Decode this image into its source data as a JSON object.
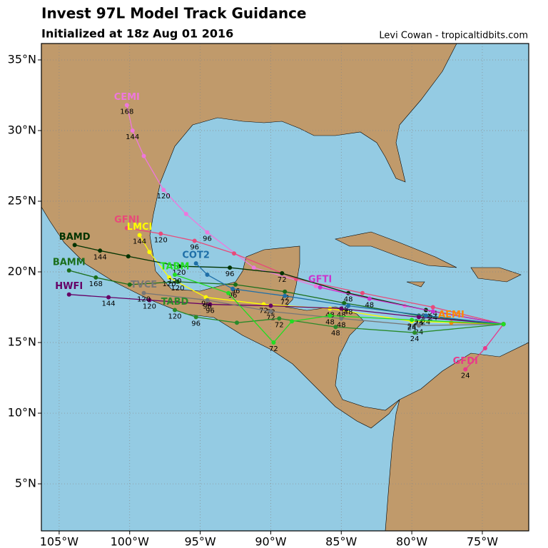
{
  "header": {
    "title": "Invest 97L Model Track Guidance",
    "subtitle": "Initialized at 18z Aug 01 2016",
    "credit": "Levi Cowan - tropicaltidbits.com"
  },
  "map": {
    "xlim": [
      -106.26,
      -71.71
    ],
    "ylim": [
      1.67,
      36.16
    ],
    "xticks": [
      {
        "value": -105,
        "label": "105°W"
      },
      {
        "value": -100,
        "label": "100°W"
      },
      {
        "value": -95,
        "label": "95°W"
      },
      {
        "value": -90,
        "label": "90°W"
      },
      {
        "value": -85,
        "label": "85°W"
      },
      {
        "value": -80,
        "label": "80°W"
      },
      {
        "value": -75,
        "label": "75°W"
      }
    ],
    "yticks": [
      {
        "value": 5,
        "label": "5°N"
      },
      {
        "value": 10,
        "label": "10°N"
      },
      {
        "value": 15,
        "label": "15°N"
      },
      {
        "value": 20,
        "label": "20°N"
      },
      {
        "value": 25,
        "label": "25°N"
      },
      {
        "value": 30,
        "label": "30°N"
      },
      {
        "value": 35,
        "label": "35°N"
      }
    ],
    "grid": true,
    "tracks": [
      {
        "name": "CEMI",
        "color": "#ee77dd",
        "lon": [
          -73.5,
          -80.5,
          -86.8,
          -91.2,
          -94.5,
          -96,
          -97.6,
          -99,
          -99.8,
          -100.2
        ],
        "lat": [
          16.3,
          17.6,
          19,
          20.3,
          22.8,
          24.1,
          25.8,
          28.2,
          30,
          31.8
        ],
        "hours": [
          null,
          null,
          null,
          null,
          "96",
          null,
          "120",
          null,
          "144",
          "168"
        ]
      },
      {
        "name": "GFNI",
        "color": "#e84a7a",
        "lon": [
          -73.5,
          -78.5,
          -83.5,
          -88.2,
          -92.6,
          -95.4,
          -97.8,
          -100.2
        ],
        "lat": [
          16.3,
          17.5,
          18.5,
          19.5,
          21.3,
          22.2,
          22.7,
          23.1
        ],
        "hours": [
          null,
          "24",
          null,
          null,
          null,
          "96",
          "120",
          null
        ]
      },
      {
        "name": "LMCI",
        "color": "#ffff00",
        "lon": [
          -73.5,
          -80,
          -85.8,
          -90.5,
          -94.6,
          -97.2,
          -98.6,
          -99.3
        ],
        "lat": [
          16.3,
          16.5,
          17.4,
          17.7,
          18.2,
          19.6,
          21.4,
          22.6
        ],
        "hours": [
          null,
          "24",
          "48",
          "72",
          "96",
          "120",
          null,
          "144"
        ]
      },
      {
        "name": "BAMD",
        "color": "#003300",
        "lon": [
          -73.5,
          -79,
          -84.5,
          -89.2,
          -92.9,
          -96.5,
          -100.1,
          -102.1,
          -103.9
        ],
        "lat": [
          16.3,
          17.3,
          18.5,
          19.9,
          20.3,
          20.4,
          21.1,
          21.5,
          21.9
        ],
        "hours": [
          null,
          "24",
          "48",
          "72",
          "96",
          "120",
          null,
          "144",
          null
        ]
      },
      {
        "name": "BAMM",
        "color": "#1a6e1a",
        "lon": [
          -73.5,
          -79.5,
          -84.8,
          -89,
          -92.5,
          -96.6,
          -100,
          -102.4,
          -104.3
        ],
        "lat": [
          16.3,
          16.9,
          17.8,
          18.6,
          19.1,
          19.3,
          19.1,
          19.6,
          20.1
        ],
        "hours": [
          null,
          "24",
          "48",
          "72",
          "96",
          "120",
          null,
          "168",
          null
        ]
      },
      {
        "name": "HWFI",
        "color": "#660066",
        "lon": [
          -73.5,
          -79.5,
          -85,
          -90,
          -94.3,
          -98.6,
          -101.5,
          -104.3
        ],
        "lat": [
          16.3,
          16.8,
          17.4,
          17.6,
          17.7,
          18,
          18.2,
          18.4
        ],
        "hours": [
          null,
          "24",
          "48",
          "72",
          "96",
          "120",
          "144",
          null
        ]
      },
      {
        "name": "GFDI",
        "color": "#e83a8a",
        "lon": [
          -73.5,
          -74.8,
          -76.2
        ],
        "lat": [
          16.3,
          14.6,
          13.1
        ],
        "hours": [
          null,
          null,
          "24"
        ]
      },
      {
        "name": "GFTI",
        "color": "#cc33cc",
        "lon": [
          -73.5,
          -78.5,
          -83,
          -86.5
        ],
        "lat": [
          16.3,
          17.2,
          18.1,
          18.9
        ],
        "hours": [
          null,
          "24",
          "48",
          null
        ]
      },
      {
        "name": "COT2",
        "color": "#1f6fa8",
        "lon": [
          -73.5,
          -79,
          -84.5,
          -89,
          -92.7,
          -94.5,
          -95.3
        ],
        "lat": [
          16.3,
          16.9,
          17.6,
          18.3,
          18.8,
          19.8,
          20.6
        ],
        "hours": [
          null,
          "24",
          "48",
          "72",
          "96",
          null,
          null
        ]
      },
      {
        "name": "TVCE",
        "color": "#777777",
        "lon": [
          -73.5,
          -79.5,
          -85,
          -90,
          -94.5,
          -99
        ],
        "lat": [
          16.3,
          16.2,
          16.7,
          17.2,
          18,
          18.5
        ],
        "hours": [
          null,
          "24",
          "48",
          "72",
          "96",
          "120"
        ]
      },
      {
        "name": "AEMI",
        "color": "#ff8800",
        "lon": [
          -73.5,
          -77.2
        ],
        "lat": [
          16.3,
          16.4
        ],
        "hours": [
          null,
          null
        ]
      },
      {
        "name": "TABD",
        "color": "#2a8a2a",
        "lon": [
          -73.5,
          -79.8,
          -85.4,
          -89.4,
          -92.4,
          -95.3,
          -96.8
        ],
        "lat": [
          16.3,
          15.7,
          16.1,
          16.7,
          16.4,
          16.8,
          17.3
        ],
        "hours": [
          null,
          "24",
          "48",
          "72",
          null,
          "96",
          "120"
        ]
      },
      {
        "name": "TABM",
        "color": "#22dd22",
        "lon": [
          -73.5,
          -80,
          -85.8,
          -88.5,
          -89.8,
          -93,
          -96.8
        ],
        "lat": [
          16.3,
          16.6,
          16.9,
          16.5,
          15,
          18.5,
          19.8
        ],
        "hours": [
          null,
          "24",
          "48",
          null,
          "72",
          null,
          "120"
        ]
      }
    ]
  }
}
